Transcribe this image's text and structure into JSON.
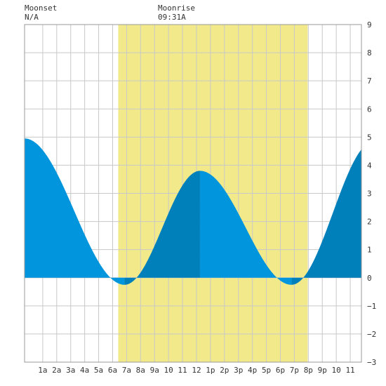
{
  "moonset": {
    "label": "Moonset",
    "time": "N/A"
  },
  "moonrise": {
    "label": "Moonrise",
    "time": "09:31A"
  },
  "chart_data": {
    "type": "area",
    "title": "",
    "xlabel": "",
    "ylabel": "",
    "xlim": [
      -0.3,
      23.8
    ],
    "ylim": [
      -3,
      9
    ],
    "yticks": [
      -3,
      -2,
      -1,
      0,
      1,
      2,
      3,
      4,
      5,
      6,
      7,
      8,
      9
    ],
    "xticks": [
      {
        "hour": 1,
        "label": "1a"
      },
      {
        "hour": 2,
        "label": "2a"
      },
      {
        "hour": 3,
        "label": "3a"
      },
      {
        "hour": 4,
        "label": "4a"
      },
      {
        "hour": 5,
        "label": "5a"
      },
      {
        "hour": 6,
        "label": "6a"
      },
      {
        "hour": 7,
        "label": "7a"
      },
      {
        "hour": 8,
        "label": "8a"
      },
      {
        "hour": 9,
        "label": "9a"
      },
      {
        "hour": 10,
        "label": "10"
      },
      {
        "hour": 11,
        "label": "11"
      },
      {
        "hour": 12,
        "label": "12"
      },
      {
        "hour": 13,
        "label": "1p"
      },
      {
        "hour": 14,
        "label": "2p"
      },
      {
        "hour": 15,
        "label": "3p"
      },
      {
        "hour": 16,
        "label": "4p"
      },
      {
        "hour": 17,
        "label": "5p"
      },
      {
        "hour": 18,
        "label": "6p"
      },
      {
        "hour": 19,
        "label": "7p"
      },
      {
        "hour": 20,
        "label": "8p"
      },
      {
        "hour": 21,
        "label": "9p"
      },
      {
        "hour": 22,
        "label": "10"
      },
      {
        "hour": 23,
        "label": "11"
      }
    ],
    "grid": true,
    "daylight": {
      "start": 6.4,
      "end": 19.95
    },
    "tide_extremes": [
      {
        "type": "high",
        "hour": -0.3,
        "value": 4.95
      },
      {
        "type": "low",
        "hour": 6.85,
        "value": -0.25
      },
      {
        "type": "high",
        "hour": 12.25,
        "value": 3.8
      },
      {
        "type": "low",
        "hour": 18.8,
        "value": -0.25
      },
      {
        "type": "high",
        "hour": 24.7,
        "value": 4.85
      }
    ],
    "colors": {
      "water": "#0095dc",
      "water_rising": "#0080bb",
      "daylight": "#f2ea8a",
      "grid": "#c8c8c8",
      "background": "#ffffff"
    }
  }
}
